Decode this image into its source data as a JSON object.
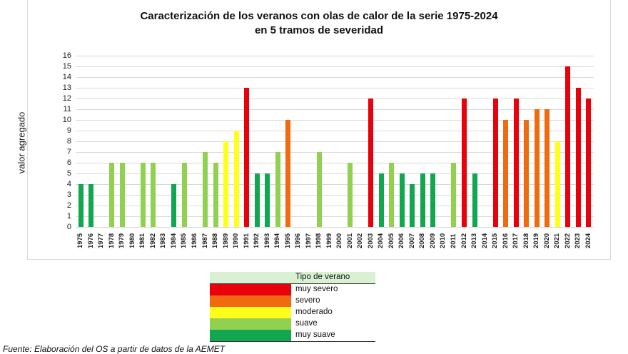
{
  "chart_data": {
    "type": "bar",
    "title": "Caracterización de los veranos con olas de calor de la serie 1975-2024",
    "subtitle": "en 5 tramos de severidad",
    "xlabel": "",
    "ylabel": "valor agregado",
    "ylim": [
      0,
      16
    ],
    "yticks": [
      0,
      1,
      2,
      3,
      4,
      5,
      6,
      7,
      8,
      9,
      10,
      11,
      12,
      13,
      14,
      15,
      16
    ],
    "grid": true,
    "legend_position": "bottom-center (separate table)",
    "categories": [
      "1975",
      "1976",
      "1977",
      "1978",
      "1979",
      "1980",
      "1981",
      "1982",
      "1983",
      "1984",
      "1985",
      "1986",
      "1987",
      "1988",
      "1989",
      "1990",
      "1991",
      "1992",
      "1993",
      "1994",
      "1995",
      "1996",
      "1997",
      "1998",
      "1999",
      "2000",
      "2001",
      "2002",
      "2003",
      "2004",
      "2005",
      "2006",
      "2007",
      "2008",
      "2009",
      "2010",
      "2011",
      "2012",
      "2013",
      "2014",
      "2015",
      "2016",
      "2017",
      "2018",
      "2019",
      "2020",
      "2021",
      "2022",
      "2023",
      "2024"
    ],
    "values": [
      4,
      4,
      0,
      6,
      6,
      0,
      6,
      6,
      0,
      4,
      6,
      0,
      7,
      6,
      8,
      9,
      13,
      5,
      5,
      7,
      10,
      0,
      0,
      7,
      0,
      0,
      6,
      0,
      12,
      5,
      6,
      5,
      4,
      5,
      5,
      0,
      6,
      12,
      5,
      0,
      12,
      10,
      12,
      10,
      11,
      11,
      8,
      15,
      13,
      12
    ],
    "categories_type": [
      "muy suave",
      "muy suave",
      "",
      "suave",
      "suave",
      "",
      "suave",
      "suave",
      "",
      "muy suave",
      "suave",
      "",
      "suave",
      "suave",
      "moderado",
      "moderado",
      "muy severo",
      "muy suave",
      "muy suave",
      "suave",
      "severo",
      "",
      "",
      "suave",
      "",
      "",
      "suave",
      "",
      "muy severo",
      "muy suave",
      "suave",
      "muy suave",
      "muy suave",
      "muy suave",
      "muy suave",
      "",
      "suave",
      "muy severo",
      "muy suave",
      "",
      "muy severo",
      "severo",
      "muy severo",
      "severo",
      "severo",
      "severo",
      "moderado",
      "muy severo",
      "muy severo",
      "muy severo"
    ],
    "legend": [
      {
        "label": "muy severo",
        "color": "#e8000b"
      },
      {
        "label": "severo",
        "color": "#f06a10"
      },
      {
        "label": "moderado",
        "color": "#ffff1a"
      },
      {
        "label": "suave",
        "color": "#92d050"
      },
      {
        "label": "muy suave",
        "color": "#12a650"
      }
    ]
  },
  "legend_title": "Tipo de verano",
  "source": "Fuente: Elaboración del OS a partir de datos de la AEMET"
}
